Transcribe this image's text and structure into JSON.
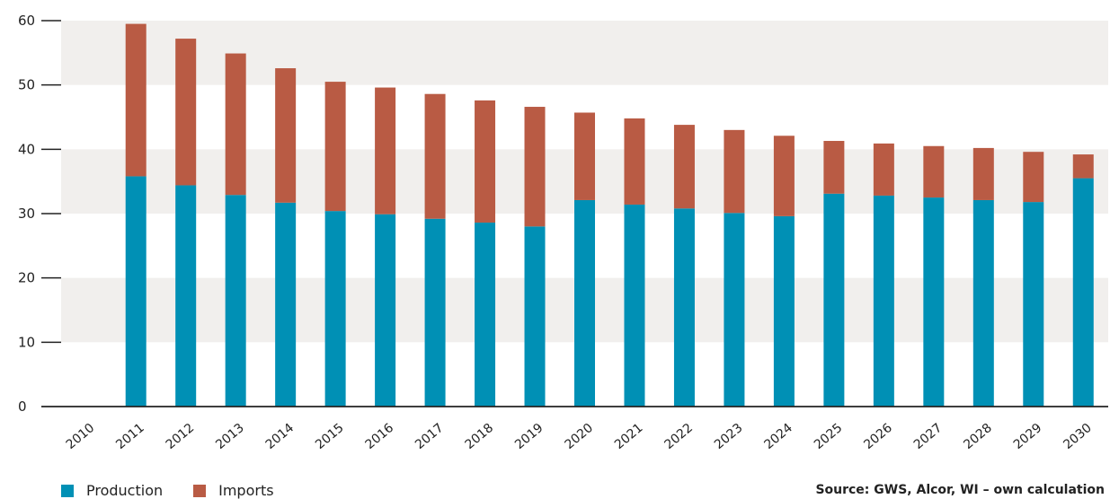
{
  "chart_data": {
    "type": "bar",
    "stacked": true,
    "categories": [
      "2010",
      "2011",
      "2012",
      "2013",
      "2014",
      "2015",
      "2016",
      "2017",
      "2018",
      "2019",
      "2020",
      "2021",
      "2022",
      "2023",
      "2024",
      "2025",
      "2026",
      "2027",
      "2028",
      "2029",
      "2030"
    ],
    "series": [
      {
        "name": "Production",
        "color": "#0090b5",
        "values": [
          0,
          35.8,
          34.4,
          32.9,
          31.7,
          30.4,
          29.9,
          29.2,
          28.6,
          28.0,
          32.1,
          31.4,
          30.8,
          30.1,
          29.6,
          33.1,
          32.8,
          32.5,
          32.1,
          31.8,
          35.5
        ]
      },
      {
        "name": "Imports",
        "color": "#b95b44",
        "values": [
          0,
          23.7,
          22.8,
          22.0,
          20.9,
          20.1,
          19.7,
          19.4,
          19.0,
          18.6,
          13.6,
          13.4,
          13.0,
          12.9,
          12.5,
          8.2,
          8.1,
          8.0,
          8.1,
          7.8,
          3.7
        ]
      }
    ],
    "ylim": [
      0,
      60
    ],
    "yticks": [
      0,
      10,
      20,
      30,
      40,
      50,
      60
    ],
    "grid": "alternating horizontal bands",
    "legend_position": "bottom-left",
    "band_color": "#f1efed",
    "source": "Source: GWS, Alcor, WI – own calculation"
  }
}
